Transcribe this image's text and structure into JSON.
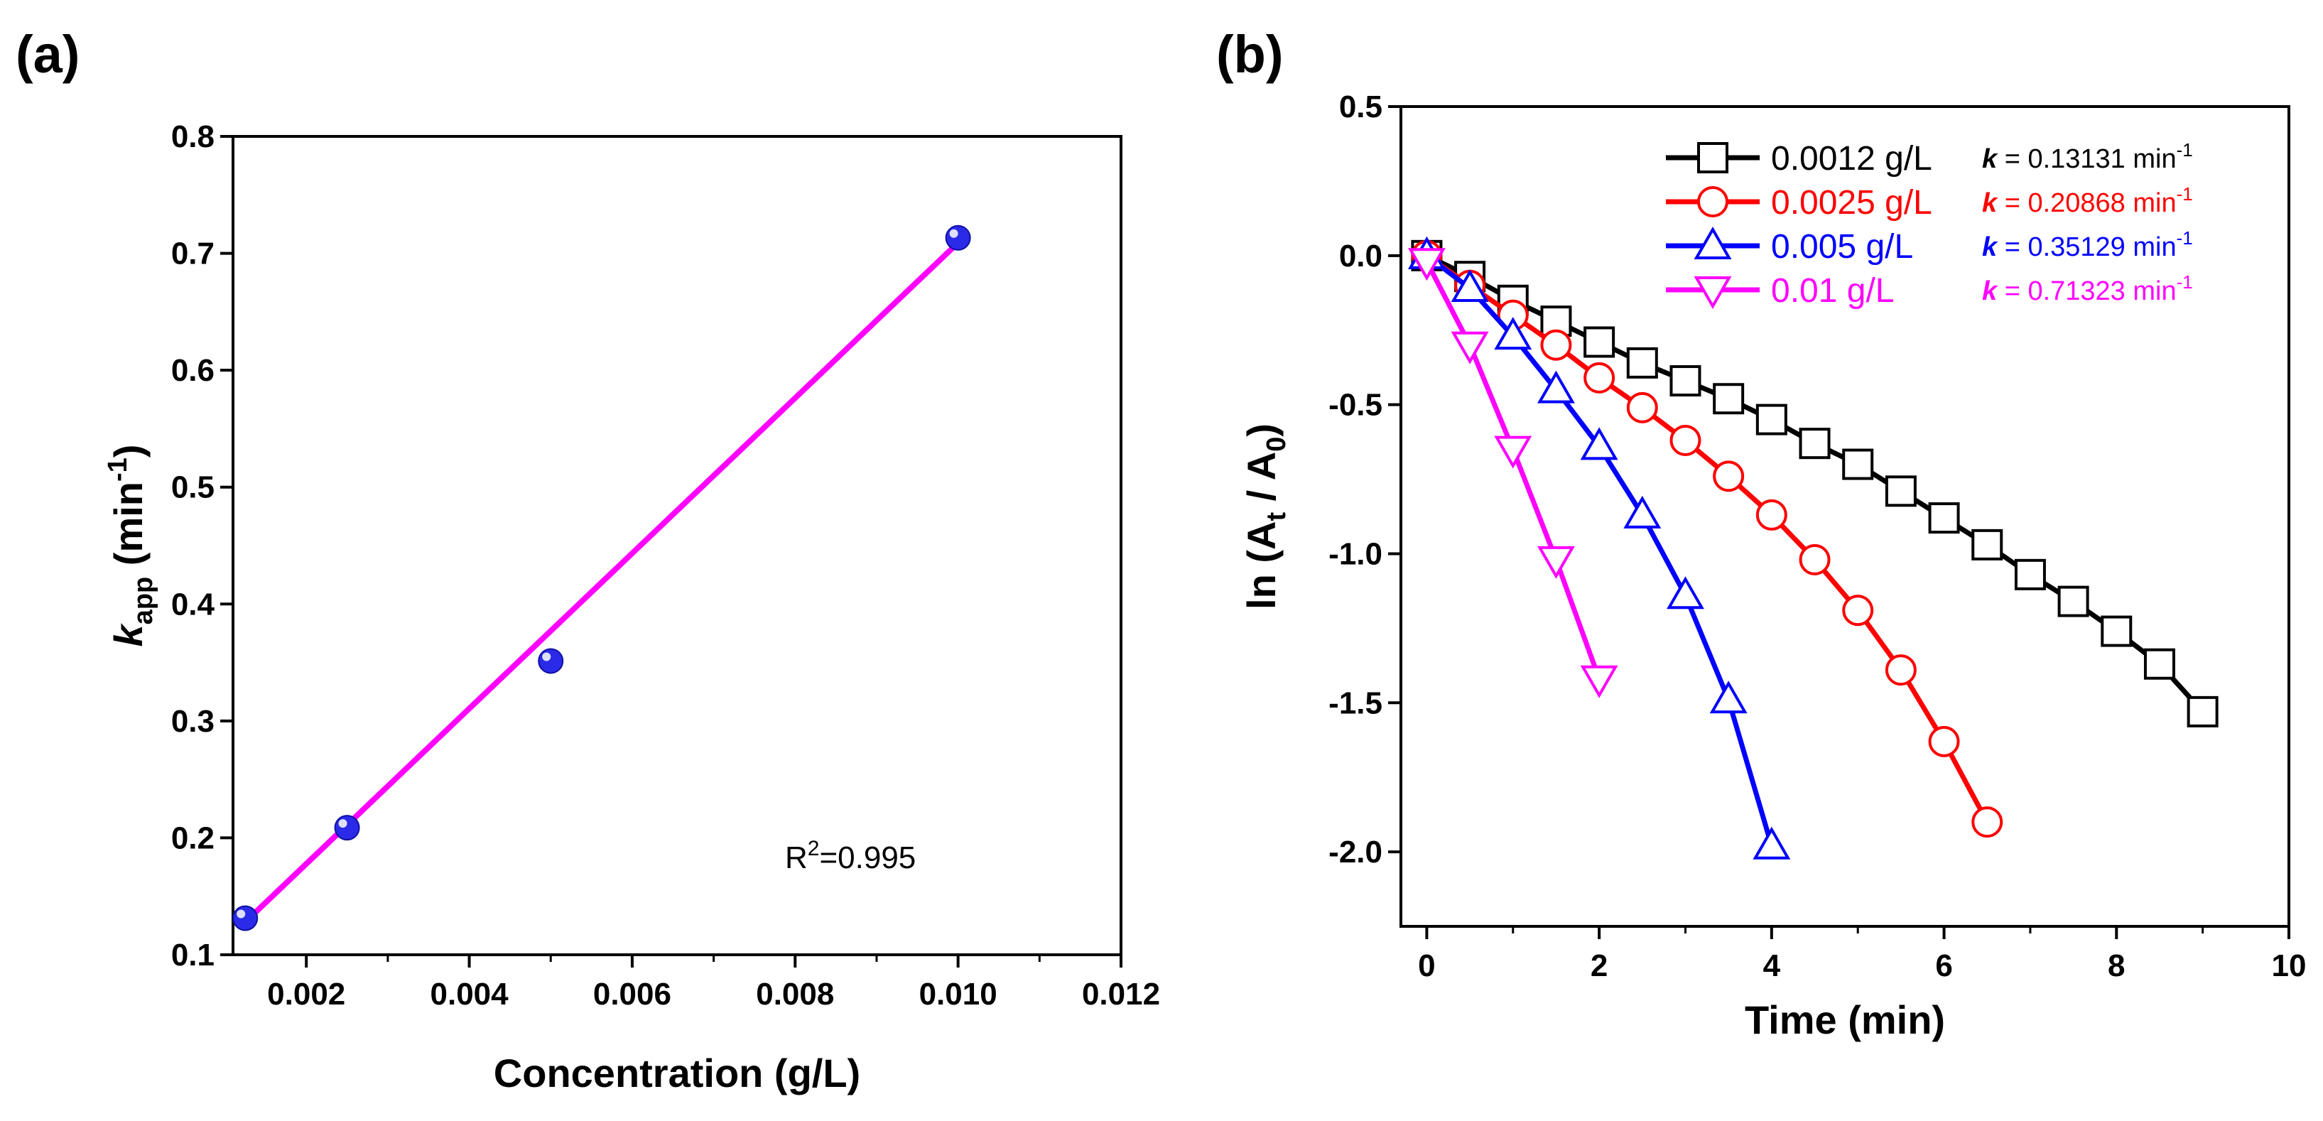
{
  "chart_data": [
    {
      "panel_label": "(a)",
      "type": "scatter",
      "xlabel": "Concentration (g/L)",
      "ylabel_main": "k",
      "ylabel_sub": "app",
      "ylabel_unit_pre": " (min",
      "ylabel_unit_sup": "-1",
      "ylabel_unit_post": ")",
      "xlim": [
        0.0011,
        0.012
      ],
      "ylim": [
        0.1,
        0.8
      ],
      "xticks": [
        0.002,
        0.004,
        0.006,
        0.008,
        0.01,
        0.012
      ],
      "xtick_labels": [
        "0.002",
        "0.004",
        "0.006",
        "0.008",
        "0.010",
        "0.012"
      ],
      "yticks": [
        0.1,
        0.2,
        0.3,
        0.4,
        0.5,
        0.6,
        0.7,
        0.8
      ],
      "ytick_labels": [
        "0.1",
        "0.2",
        "0.3",
        "0.4",
        "0.5",
        "0.6",
        "0.7",
        "0.8"
      ],
      "points": {
        "x": [
          0.00125,
          0.0025,
          0.005,
          0.01
        ],
        "y": [
          0.13131,
          0.20868,
          0.35129,
          0.71323
        ],
        "color": "#2a2ae8"
      },
      "fit": {
        "x": [
          0.00125,
          0.01
        ],
        "y": [
          0.128,
          0.709
        ],
        "color": "#ff00ff"
      },
      "annotation_pre": "R",
      "annotation_sup": "2",
      "annotation_post": "=0.995"
    },
    {
      "panel_label": "(b)",
      "type": "line",
      "xlabel": "Time (min)",
      "ylabel_pre": "ln (A",
      "ylabel_sub1": "t",
      "ylabel_mid": " / A",
      "ylabel_sub2": "0",
      "ylabel_post": ")",
      "xlim": [
        -0.3,
        10
      ],
      "ylim": [
        -2.25,
        0.5
      ],
      "xticks": [
        0,
        2,
        4,
        6,
        8,
        10
      ],
      "xtick_labels": [
        "0",
        "2",
        "4",
        "6",
        "8",
        "10"
      ],
      "yticks": [
        0.5,
        0.0,
        -0.5,
        -1.0,
        -1.5,
        -2.0
      ],
      "ytick_labels": [
        "0.5",
        "0.0",
        "-0.5",
        "-1.0",
        "-1.5",
        "-2.0"
      ],
      "series": [
        {
          "name": "0.0012 g/L",
          "k_label": "k",
          "k_value": " = 0.13131 min",
          "k_sup": "-1",
          "color": "#000000",
          "marker": "square",
          "x": [
            0,
            0.5,
            1,
            1.5,
            2,
            2.5,
            3,
            3.5,
            4,
            4.5,
            5,
            5.5,
            6,
            6.5,
            7,
            7.5,
            8,
            8.5,
            9
          ],
          "y": [
            0,
            -0.07,
            -0.15,
            -0.22,
            -0.29,
            -0.36,
            -0.42,
            -0.48,
            -0.55,
            -0.63,
            -0.7,
            -0.79,
            -0.88,
            -0.97,
            -1.07,
            -1.16,
            -1.26,
            -1.37,
            -1.53
          ]
        },
        {
          "name": "0.0025 g/L",
          "k_label": "k",
          "k_value": " = 0.20868 min",
          "k_sup": "-1",
          "color": "#ff0000",
          "marker": "circle",
          "x": [
            0,
            0.5,
            1,
            1.5,
            2,
            2.5,
            3,
            3.5,
            4,
            4.5,
            5,
            5.5,
            6,
            6.5
          ],
          "y": [
            0,
            -0.1,
            -0.2,
            -0.3,
            -0.41,
            -0.51,
            -0.62,
            -0.74,
            -0.87,
            -1.02,
            -1.19,
            -1.39,
            -1.63,
            -1.9
          ]
        },
        {
          "name": "0.005 g/L",
          "k_label": "k",
          "k_value": " = 0.35129 min",
          "k_sup": "-1",
          "color": "#0000ff",
          "marker": "triangle-up",
          "x": [
            0,
            0.5,
            1,
            1.5,
            2,
            2.5,
            3,
            3.5,
            4
          ],
          "y": [
            0,
            -0.11,
            -0.27,
            -0.45,
            -0.64,
            -0.87,
            -1.14,
            -1.49,
            -1.98
          ]
        },
        {
          "name": "0.01 g/L",
          "k_label": "k",
          "k_value": " = 0.71323 min",
          "k_sup": "-1",
          "color": "#ff00ff",
          "marker": "triangle-down",
          "x": [
            0,
            0.5,
            1,
            1.5,
            2
          ],
          "y": [
            -0.02,
            -0.3,
            -0.65,
            -1.02,
            -1.42
          ]
        }
      ]
    }
  ]
}
